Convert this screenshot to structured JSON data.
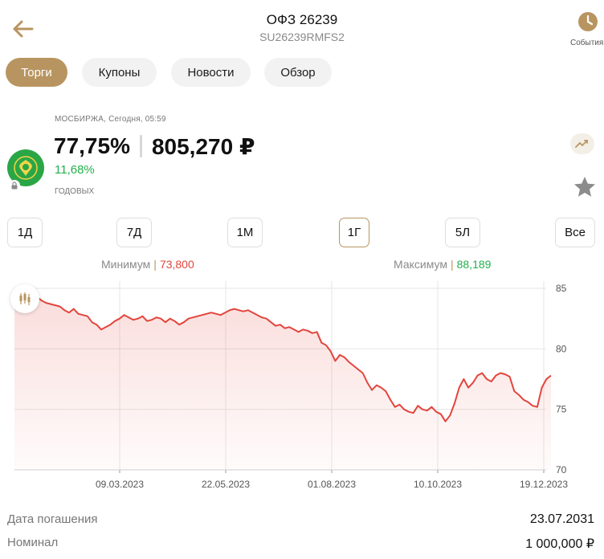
{
  "header": {
    "title": "ОФЗ 26239",
    "subtitle": "SU26239RMFS2",
    "events_label": "События"
  },
  "tabs": [
    {
      "label": "Торги",
      "active": true
    },
    {
      "label": "Купоны",
      "active": false
    },
    {
      "label": "Новости",
      "active": false
    },
    {
      "label": "Обзор",
      "active": false
    }
  ],
  "quote": {
    "exchange": "МОСБИРЖА, Сегодня, 05:59",
    "price_percent": "77,75%",
    "price_rub": "805,270 ₽",
    "yield": "11,68%",
    "yield_label": "ГОДОВЫХ"
  },
  "periods": [
    {
      "label": "1Д",
      "active": false
    },
    {
      "label": "7Д",
      "active": false
    },
    {
      "label": "1М",
      "active": false
    },
    {
      "label": "1Г",
      "active": true
    },
    {
      "label": "5Л",
      "active": false
    },
    {
      "label": "Все",
      "active": false
    }
  ],
  "range": {
    "min_label": "Минимум",
    "min_value": "73,800",
    "max_label": "Максимум",
    "max_value": "88,189"
  },
  "colors": {
    "accent": "#b89560",
    "line": "#e2453c",
    "positive": "#22b04c",
    "negative": "#e2453c"
  },
  "chart_data": {
    "type": "line",
    "x_tick_labels": [
      "09.03.2023",
      "22.05.2023",
      "01.08.2023",
      "10.10.2023",
      "19.12.2023"
    ],
    "y_ticks": [
      70,
      75,
      80,
      85
    ],
    "ylim": [
      70,
      85.6
    ],
    "grid": true,
    "y_axis_position": "right",
    "series": [
      {
        "values": [
          84.3,
          84.0,
          83.8,
          83.7,
          83.6,
          83.5,
          83.2,
          83.0,
          83.3,
          82.9,
          82.8,
          82.7,
          82.2,
          82.0,
          81.6,
          81.8,
          82.0,
          82.3,
          82.5,
          82.8,
          82.6,
          82.4,
          82.5,
          82.7,
          82.3,
          82.4,
          82.6,
          82.5,
          82.2,
          82.5,
          82.3,
          82.0,
          82.2,
          82.5,
          82.6,
          82.7,
          82.8,
          82.9,
          83.0,
          82.9,
          82.8,
          83.0,
          83.2,
          83.3,
          83.2,
          83.1,
          83.2,
          83.0,
          82.8,
          82.6,
          82.5,
          82.2,
          81.9,
          82.0,
          81.7,
          81.8,
          81.6,
          81.4,
          81.6,
          81.5,
          81.3,
          81.4,
          80.5,
          80.3,
          79.8,
          79.0,
          79.5,
          79.3,
          78.9,
          78.6,
          78.3,
          78.0,
          77.2,
          76.6,
          77.0,
          76.8,
          76.5,
          75.8,
          75.2,
          75.4,
          75.0,
          74.8,
          74.7,
          75.3,
          75.0,
          74.9,
          75.2,
          74.8,
          74.6,
          74.0,
          74.5,
          75.5,
          76.8,
          77.5,
          76.8,
          77.2,
          77.8,
          78.0,
          77.5,
          77.3,
          77.8,
          78.0,
          77.9,
          77.7,
          76.5,
          76.2,
          75.8,
          75.6,
          75.3,
          75.2,
          76.8,
          77.5,
          77.8
        ]
      }
    ]
  },
  "details": [
    {
      "label": "Дата погашения",
      "value": "23.07.2031"
    },
    {
      "label": "Номинал",
      "value": "1 000,000 ₽"
    }
  ]
}
